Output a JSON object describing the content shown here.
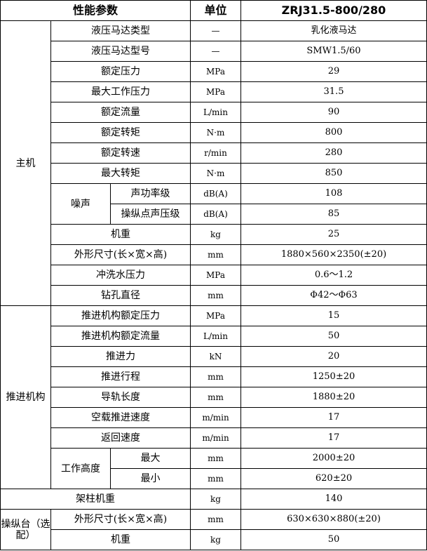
{
  "header": {
    "param": "性能参数",
    "unit": "单位",
    "model": "ZRJ31.5-800/280"
  },
  "groups": [
    {
      "label": "主机",
      "rows": [
        {
          "name": "液压马达类型",
          "unit": "—",
          "value": "乳化液马达"
        },
        {
          "name": "液压马达型号",
          "unit": "—",
          "value": "SMW1.5/60"
        },
        {
          "name": "额定压力",
          "unit": "MPa",
          "value": "29"
        },
        {
          "name": "最大工作压力",
          "unit": "MPa",
          "value": "31.5"
        },
        {
          "name": "额定流量",
          "unit": "L/min",
          "value": "90"
        },
        {
          "name": "额定转矩",
          "unit": "N·m",
          "value": "800"
        },
        {
          "name": "额定转速",
          "unit": "r/min",
          "value": "280"
        },
        {
          "name": "最大转矩",
          "unit": "N·m",
          "value": "850"
        },
        {
          "sub": "噪声",
          "name": "声功率级",
          "unit": "dB(A)",
          "value": "108"
        },
        {
          "sub": "噪声",
          "name": "操纵点声压级",
          "unit": "dB(A)",
          "value": "85"
        },
        {
          "name": "机重",
          "unit": "kg",
          "value": "25"
        },
        {
          "name": "外形尺寸(长×宽×高)",
          "unit": "mm",
          "value": "1880×560×2350(±20)"
        },
        {
          "name": "冲洗水压力",
          "unit": "MPa",
          "value": "0.6～1.2"
        },
        {
          "name": "钻孔直径",
          "unit": "mm",
          "value": "Φ42～Φ63"
        }
      ]
    },
    {
      "label": "推进机构",
      "rows": [
        {
          "name": "推进机构额定压力",
          "unit": "MPa",
          "value": "15"
        },
        {
          "name": "推进机构额定流量",
          "unit": "L/min",
          "value": "50"
        },
        {
          "name": "推进力",
          "unit": "kN",
          "value": "20"
        },
        {
          "name": "推进行程",
          "unit": "mm",
          "value": "1250±20"
        },
        {
          "name": "导轨长度",
          "unit": "mm",
          "value": "1880±20"
        },
        {
          "name": "空载推进速度",
          "unit": "m/min",
          "value": "17"
        },
        {
          "name": "返回速度",
          "unit": "m/min",
          "value": "17"
        },
        {
          "sub": "工作高度",
          "name": "最大",
          "unit": "mm",
          "value": "2000±20"
        },
        {
          "sub": "工作高度",
          "name": "最小",
          "unit": "mm",
          "value": "620±20"
        }
      ]
    },
    {
      "label": "架柱机重",
      "single": true,
      "rows": [
        {
          "name": "架柱机重",
          "unit": "kg",
          "value": "140"
        }
      ]
    },
    {
      "label": "操纵台（选配）",
      "rows": [
        {
          "name": "外形尺寸(长×宽×高)",
          "unit": "mm",
          "value": "630×630×880(±20)"
        },
        {
          "name": "机重",
          "unit": "kg",
          "value": "50"
        }
      ]
    }
  ]
}
